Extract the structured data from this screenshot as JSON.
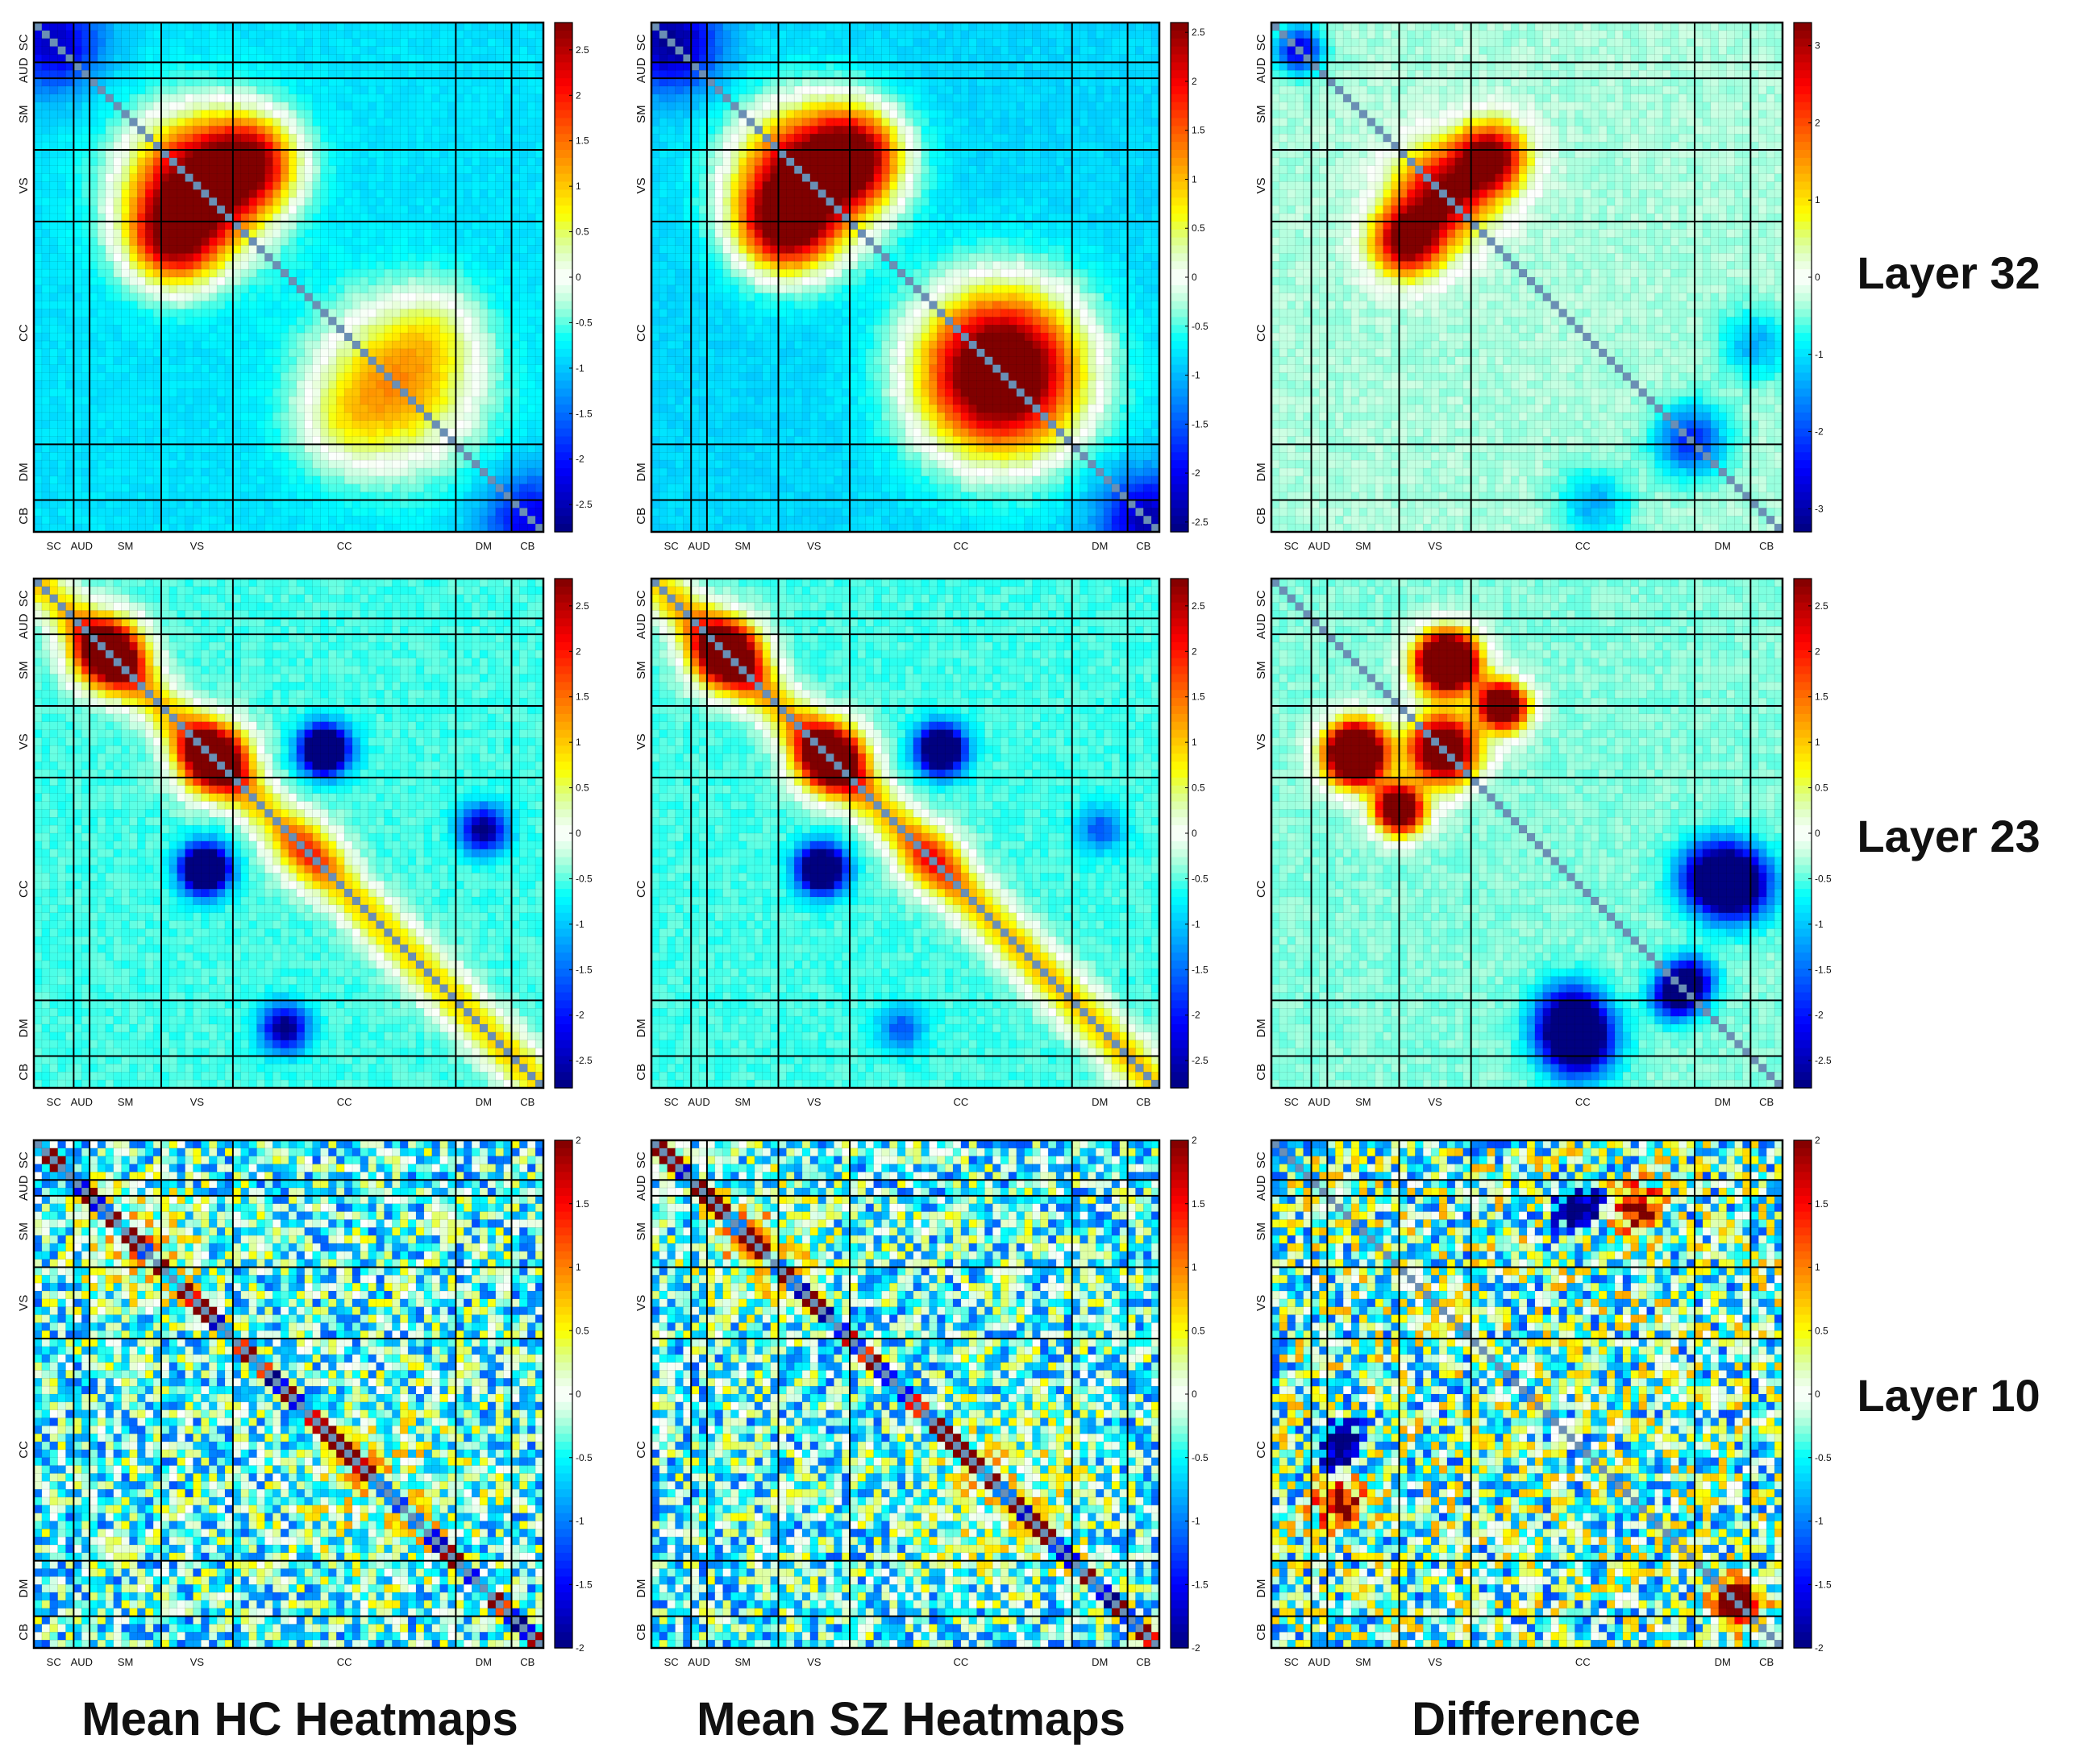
{
  "figure": {
    "column_titles": [
      "Mean HC Heatmaps",
      "Mean SZ Heatmaps",
      "Difference"
    ],
    "row_labels": [
      "Layer 32",
      "Layer 23",
      "Layer 10"
    ]
  },
  "chart_data": {
    "type": "heatmap",
    "network_labels": [
      "SC",
      "AUD",
      "SM",
      "VS",
      "CC",
      "DM",
      "CB"
    ],
    "network_sizes": [
      5,
      2,
      9,
      9,
      28,
      7,
      4
    ],
    "matrix_size": 64,
    "colormap": "jet",
    "colors": {
      "low": "#00008f",
      "zero": "#ffffff",
      "high": "#800000",
      "grid": "#000000"
    },
    "panels": [
      {
        "row": 0,
        "col": 0,
        "title": "Mean HC Heatmaps",
        "layer": "Layer 32",
        "clim": [
          -2.8,
          2.8
        ],
        "colorbar_ticks": [
          2.5,
          2,
          1.5,
          1,
          0.5,
          0,
          -0.5,
          -1,
          -1.5,
          -2,
          -2.5
        ],
        "pattern": {
          "base": -0.85,
          "blobs": [
            {
              "i": 20,
              "j": 20,
              "sigma": 6,
              "amp": 3.8
            },
            {
              "i": 17,
              "j": 27,
              "sigma": 4,
              "amp": 1.3
            },
            {
              "i": 27,
              "j": 17,
              "sigma": 4,
              "amp": 1.3
            },
            {
              "i": 45,
              "j": 45,
              "sigma": 7,
              "amp": 2.1
            },
            {
              "i": 38,
              "j": 50,
              "sigma": 4,
              "amp": 0.6
            },
            {
              "i": 2,
              "j": 2,
              "sigma": 4,
              "amp": -1.6
            },
            {
              "i": 62,
              "j": 62,
              "sigma": 4,
              "amp": -1.4
            }
          ],
          "band": {
            "width": 0,
            "amp": 0
          },
          "noise": 0.08,
          "seed": 11
        }
      },
      {
        "row": 0,
        "col": 1,
        "title": "Mean SZ Heatmaps",
        "layer": "Layer 32",
        "clim": [
          -2.6,
          2.6
        ],
        "colorbar_ticks": [
          2.5,
          2,
          1.5,
          1,
          0.5,
          0,
          -0.5,
          -1,
          -1.5,
          -2,
          -2.5
        ],
        "pattern": {
          "base": -0.85,
          "blobs": [
            {
              "i": 19,
              "j": 19,
              "sigma": 6,
              "amp": 3.6
            },
            {
              "i": 15,
              "j": 25,
              "sigma": 4,
              "amp": 1.2
            },
            {
              "i": 26,
              "j": 17,
              "sigma": 4,
              "amp": 1.4
            },
            {
              "i": 43,
              "j": 44,
              "sigma": 7,
              "amp": 2.3
            },
            {
              "i": 2,
              "j": 2,
              "sigma": 4,
              "amp": -1.7
            },
            {
              "i": 62,
              "j": 62,
              "sigma": 4,
              "amp": -1.5
            }
          ],
          "band": {
            "width": 0,
            "amp": 0
          },
          "noise": 0.08,
          "seed": 23
        }
      },
      {
        "row": 0,
        "col": 2,
        "title": "Difference",
        "layer": "Layer 32",
        "clim": [
          -3.3,
          3.3
        ],
        "colorbar_ticks": [
          3,
          2,
          1,
          0,
          -1,
          -2,
          -3
        ],
        "pattern": {
          "base": -0.35,
          "blobs": [
            {
              "i": 21,
              "j": 21,
              "sigma": 4,
              "amp": 3.6
            },
            {
              "i": 16,
              "j": 27,
              "sigma": 3,
              "amp": 2.0
            },
            {
              "i": 27,
              "j": 17,
              "sigma": 3,
              "amp": 2.0
            },
            {
              "i": 3,
              "j": 3,
              "sigma": 2,
              "amp": -2.4
            },
            {
              "i": 52,
              "j": 52,
              "sigma": 3,
              "amp": -1.9
            },
            {
              "i": 60,
              "j": 40,
              "sigma": 3,
              "amp": -1.0
            }
          ],
          "band": {
            "width": 0,
            "amp": 0
          },
          "noise": 0.12,
          "seed": 37
        }
      },
      {
        "row": 1,
        "col": 0,
        "title": "Mean HC Heatmaps",
        "layer": "Layer 23",
        "clim": [
          -2.8,
          2.8
        ],
        "colorbar_ticks": [
          2.5,
          2,
          1.5,
          1,
          0.5,
          0,
          -0.5,
          -1,
          -1.5,
          -2,
          -2.5
        ],
        "pattern": {
          "base": -0.55,
          "blobs": [
            {
              "i": 9,
              "j": 9,
              "sigma": 3,
              "amp": 4.0
            },
            {
              "i": 22,
              "j": 22,
              "sigma": 3,
              "amp": 4.0
            },
            {
              "i": 34,
              "j": 34,
              "sigma": 3,
              "amp": 1.0
            },
            {
              "i": 21,
              "j": 36,
              "sigma": 2,
              "amp": -2.2
            },
            {
              "i": 36,
              "j": 21,
              "sigma": 2,
              "amp": -2.2
            },
            {
              "i": 56,
              "j": 31,
              "sigma": 2,
              "amp": -1.2
            },
            {
              "i": 31,
              "j": 56,
              "sigma": 2,
              "amp": -1.2
            }
          ],
          "band": {
            "width": 3,
            "amp": 1.5
          },
          "noise": 0.1,
          "seed": 41
        }
      },
      {
        "row": 1,
        "col": 1,
        "title": "Mean SZ Heatmaps",
        "layer": "Layer 23",
        "clim": [
          -2.8,
          2.8
        ],
        "colorbar_ticks": [
          2.5,
          2,
          1.5,
          1,
          0.5,
          0,
          -0.5,
          -1,
          -1.5,
          -2,
          -2.5
        ],
        "pattern": {
          "base": -0.55,
          "blobs": [
            {
              "i": 9,
              "j": 9,
              "sigma": 3,
              "amp": 4.0
            },
            {
              "i": 22,
              "j": 22,
              "sigma": 3,
              "amp": 4.0
            },
            {
              "i": 35,
              "j": 35,
              "sigma": 3,
              "amp": 1.1
            },
            {
              "i": 21,
              "j": 36,
              "sigma": 2,
              "amp": -2.0
            },
            {
              "i": 36,
              "j": 21,
              "sigma": 2,
              "amp": -2.0
            },
            {
              "i": 56,
              "j": 31,
              "sigma": 2,
              "amp": -1.1
            }
          ],
          "band": {
            "width": 3,
            "amp": 1.6
          },
          "noise": 0.1,
          "seed": 53
        }
      },
      {
        "row": 1,
        "col": 2,
        "title": "Difference",
        "layer": "Layer 23",
        "clim": [
          -2.8,
          2.8
        ],
        "colorbar_ticks": [
          2.5,
          2,
          1.5,
          1,
          0.5,
          0,
          -0.5,
          -1,
          -1.5,
          -2,
          -2.5
        ],
        "pattern": {
          "base": -0.4,
          "blobs": [
            {
              "i": 21,
              "j": 21,
              "sigma": 3,
              "amp": 4.5
            },
            {
              "i": 21,
              "j": 10,
              "sigma": 2.5,
              "amp": 3.5
            },
            {
              "i": 10,
              "j": 22,
              "sigma": 2.5,
              "amp": 3.2
            },
            {
              "i": 28,
              "j": 15,
              "sigma": 2,
              "amp": 2.8
            },
            {
              "i": 16,
              "j": 29,
              "sigma": 2,
              "amp": 2.4
            },
            {
              "i": 37,
              "j": 55,
              "sigma": 3,
              "amp": -2.6
            },
            {
              "i": 52,
              "j": 50,
              "sigma": 2,
              "amp": -2.4
            },
            {
              "i": 58,
              "j": 38,
              "sigma": 3,
              "amp": -2.6
            }
          ],
          "band": {
            "width": 0,
            "amp": 0
          },
          "noise": 0.1,
          "seed": 67
        }
      },
      {
        "row": 2,
        "col": 0,
        "title": "Mean HC Heatmaps",
        "layer": "Layer 10",
        "clim": [
          -2,
          2
        ],
        "colorbar_ticks": [
          2,
          1.5,
          1,
          0.5,
          0,
          -0.5,
          -1,
          -1.5,
          -2
        ],
        "pattern": {
          "base": -0.35,
          "blobs": [
            {
              "i": 13,
              "j": 13,
              "sigma": 5,
              "amp": 0.8
            },
            {
              "i": 44,
              "j": 44,
              "sigma": 7,
              "amp": 0.6
            }
          ],
          "band": {
            "width": 1,
            "amp": 1.2
          },
          "noise": 0.85,
          "seed": 79
        }
      },
      {
        "row": 2,
        "col": 1,
        "title": "Mean SZ Heatmaps",
        "layer": "Layer 10",
        "clim": [
          -2,
          2
        ],
        "colorbar_ticks": [
          2,
          1.5,
          1,
          0.5,
          0,
          -0.5,
          -1,
          -1.5,
          -2
        ],
        "pattern": {
          "base": -0.35,
          "blobs": [
            {
              "i": 13,
              "j": 13,
              "sigma": 5,
              "amp": 0.8
            },
            {
              "i": 44,
              "j": 44,
              "sigma": 7,
              "amp": 0.6
            }
          ],
          "band": {
            "width": 1,
            "amp": 1.2
          },
          "noise": 0.85,
          "seed": 83
        }
      },
      {
        "row": 2,
        "col": 2,
        "title": "Difference",
        "layer": "Layer 10",
        "clim": [
          -2,
          2
        ],
        "colorbar_ticks": [
          2,
          1.5,
          1,
          0.5,
          0,
          -0.5,
          -1,
          -1.5,
          -2
        ],
        "pattern": {
          "base": -0.2,
          "blobs": [
            {
              "i": 38,
              "j": 8,
              "sigma": 2,
              "amp": -2.5
            },
            {
              "i": 45,
              "j": 8,
              "sigma": 2,
              "amp": 2.5
            },
            {
              "i": 57,
              "j": 58,
              "sigma": 2,
              "amp": 1.8
            }
          ],
          "band": {
            "width": 0,
            "amp": 0
          },
          "noise": 1.05,
          "seed": 97
        }
      }
    ]
  }
}
